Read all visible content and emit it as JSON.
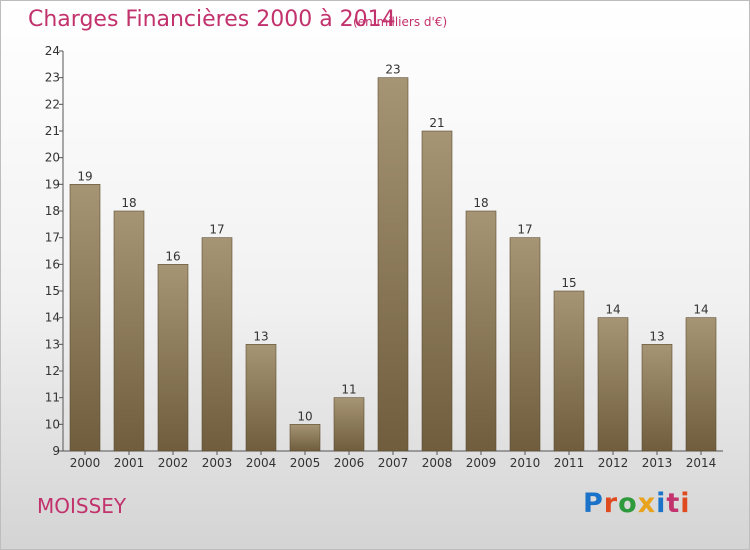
{
  "header": {
    "title": "Charges Financières 2000 à 2014",
    "subtitle": "(en milliers d'€)"
  },
  "footer": {
    "place": "MOISSEY",
    "logo": "Proxiti"
  },
  "colors": {
    "title": "#c2326c",
    "bar_top": "#a69574",
    "bar_bottom": "#6f5d3e",
    "logo": [
      "#1a73c9",
      "#e04a1f",
      "#2e9a3c",
      "#e8a21b",
      "#1a73c9",
      "#c2326c",
      "#e04a1f"
    ]
  },
  "chart_data": {
    "type": "bar",
    "title": "Charges Financières 2000 à 2014",
    "subtitle": "(en milliers d'€)",
    "categories": [
      "2000",
      "2001",
      "2002",
      "2003",
      "2004",
      "2005",
      "2006",
      "2007",
      "2008",
      "2009",
      "2010",
      "2011",
      "2012",
      "2013",
      "2014"
    ],
    "values": [
      19,
      18,
      16,
      17,
      13,
      10,
      11,
      23,
      21,
      18,
      17,
      15,
      14,
      13,
      14
    ],
    "ylim": [
      9,
      24
    ],
    "yticks": [
      9,
      10,
      11,
      12,
      13,
      14,
      15,
      16,
      17,
      18,
      19,
      20,
      21,
      22,
      23,
      24
    ],
    "grid": false,
    "data_labels": true
  }
}
